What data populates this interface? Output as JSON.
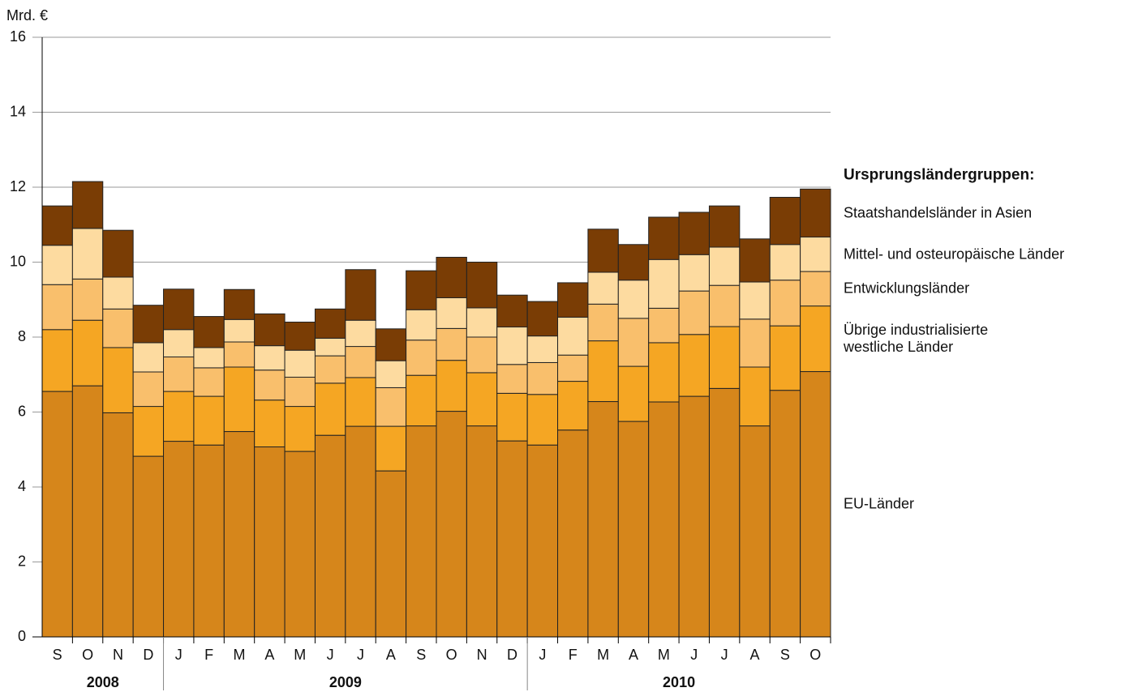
{
  "chart_data": {
    "type": "stacked_bar",
    "y_label": "Mrd. €",
    "categories": [
      "S",
      "O",
      "N",
      "D",
      "J",
      "F",
      "M",
      "A",
      "M",
      "J",
      "J",
      "A",
      "S",
      "O",
      "N",
      "D",
      "J",
      "F",
      "M",
      "A",
      "M",
      "J",
      "J",
      "A",
      "S",
      "O"
    ],
    "category_groups": [
      {
        "label": "2008",
        "size": 4
      },
      {
        "label": "2009",
        "size": 12
      },
      {
        "label": "2010",
        "size": 10
      }
    ],
    "legend_title": "Ursprungsländergruppen:",
    "series": [
      {
        "name": "EU-Länder",
        "color": "#d6861b",
        "values": [
          6.55,
          6.7,
          5.98,
          4.82,
          5.22,
          5.12,
          5.48,
          5.07,
          4.95,
          5.38,
          5.62,
          4.43,
          5.63,
          6.02,
          5.63,
          5.23,
          5.12,
          5.52,
          6.28,
          5.75,
          6.27,
          6.42,
          6.63,
          5.63,
          6.58,
          7.08
        ]
      },
      {
        "name": "Übrige industrialisierte westliche Länder",
        "color": "#f5a623",
        "values": [
          1.65,
          1.75,
          1.74,
          1.33,
          1.33,
          1.3,
          1.72,
          1.25,
          1.2,
          1.39,
          1.3,
          1.19,
          1.35,
          1.36,
          1.42,
          1.27,
          1.35,
          1.3,
          1.62,
          1.47,
          1.58,
          1.65,
          1.65,
          1.57,
          1.72,
          1.75
        ]
      },
      {
        "name": "Entwicklungsländer",
        "color": "#f9bf6c",
        "values": [
          1.2,
          1.1,
          1.03,
          0.92,
          0.92,
          0.76,
          0.67,
          0.8,
          0.78,
          0.73,
          0.83,
          1.03,
          0.94,
          0.85,
          0.95,
          0.77,
          0.85,
          0.7,
          0.98,
          1.28,
          0.92,
          1.16,
          1.1,
          1.28,
          1.22,
          0.92
        ]
      },
      {
        "name": "Mittel- und osteuropäische Länder",
        "color": "#fddba0",
        "values": [
          1.05,
          1.35,
          0.85,
          0.78,
          0.73,
          0.54,
          0.6,
          0.65,
          0.72,
          0.47,
          0.7,
          0.72,
          0.81,
          0.82,
          0.78,
          1.0,
          0.71,
          1.01,
          0.85,
          1.02,
          1.3,
          0.97,
          1.02,
          0.99,
          0.95,
          0.92
        ]
      },
      {
        "name": "Staatshandelsländer in Asien",
        "color": "#7a3d05",
        "values": [
          1.05,
          1.25,
          1.25,
          1.0,
          1.08,
          0.83,
          0.8,
          0.85,
          0.75,
          0.78,
          1.35,
          0.85,
          1.04,
          1.08,
          1.22,
          0.85,
          0.92,
          0.92,
          1.15,
          0.95,
          1.13,
          1.13,
          1.1,
          1.15,
          1.26,
          1.28
        ]
      }
    ],
    "ylim": [
      0,
      16
    ],
    "yticks": [
      0,
      2,
      4,
      6,
      8,
      10,
      12,
      14,
      16
    ],
    "grid": true
  }
}
